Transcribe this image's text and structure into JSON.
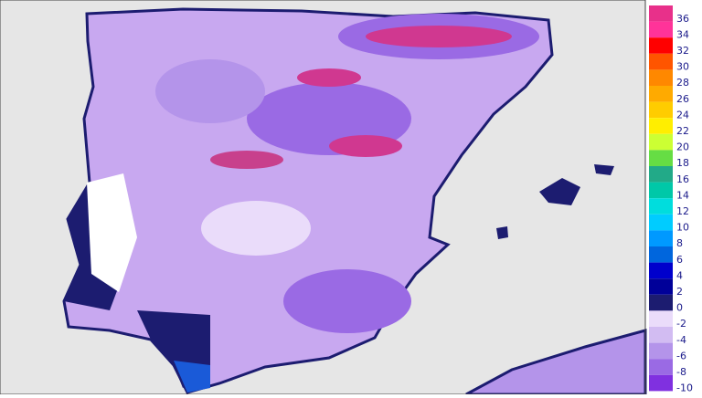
{
  "legend": {
    "items": [
      {
        "label": "36",
        "color": "#e8308a"
      },
      {
        "label": "34",
        "color": "#ff3399"
      },
      {
        "label": "32",
        "color": "#ff0000"
      },
      {
        "label": "30",
        "color": "#ff5500"
      },
      {
        "label": "28",
        "color": "#ff8800"
      },
      {
        "label": "26",
        "color": "#ffaa00"
      },
      {
        "label": "24",
        "color": "#ffcc00"
      },
      {
        "label": "22",
        "color": "#ffee00"
      },
      {
        "label": "20",
        "color": "#ccff33"
      },
      {
        "label": "18",
        "color": "#66dd44"
      },
      {
        "label": "16",
        "color": "#22aa88"
      },
      {
        "label": "14",
        "color": "#00c8a8"
      },
      {
        "label": "12",
        "color": "#00dddd"
      },
      {
        "label": "10",
        "color": "#00ccff"
      },
      {
        "label": "8",
        "color": "#0099ff"
      },
      {
        "label": "6",
        "color": "#0066dd"
      },
      {
        "label": "4",
        "color": "#0000cc"
      },
      {
        "label": "2",
        "color": "#000099"
      },
      {
        "label": "0",
        "color": "#1c1c70"
      },
      {
        "label": "-2",
        "color": "#eadcfa"
      },
      {
        "label": "-4",
        "color": "#d2bcf2"
      },
      {
        "label": "-6",
        "color": "#b494ea"
      },
      {
        "label": "-8",
        "color": "#9a6ae4"
      },
      {
        "label": "-10",
        "color": "#8030e0"
      }
    ]
  }
}
